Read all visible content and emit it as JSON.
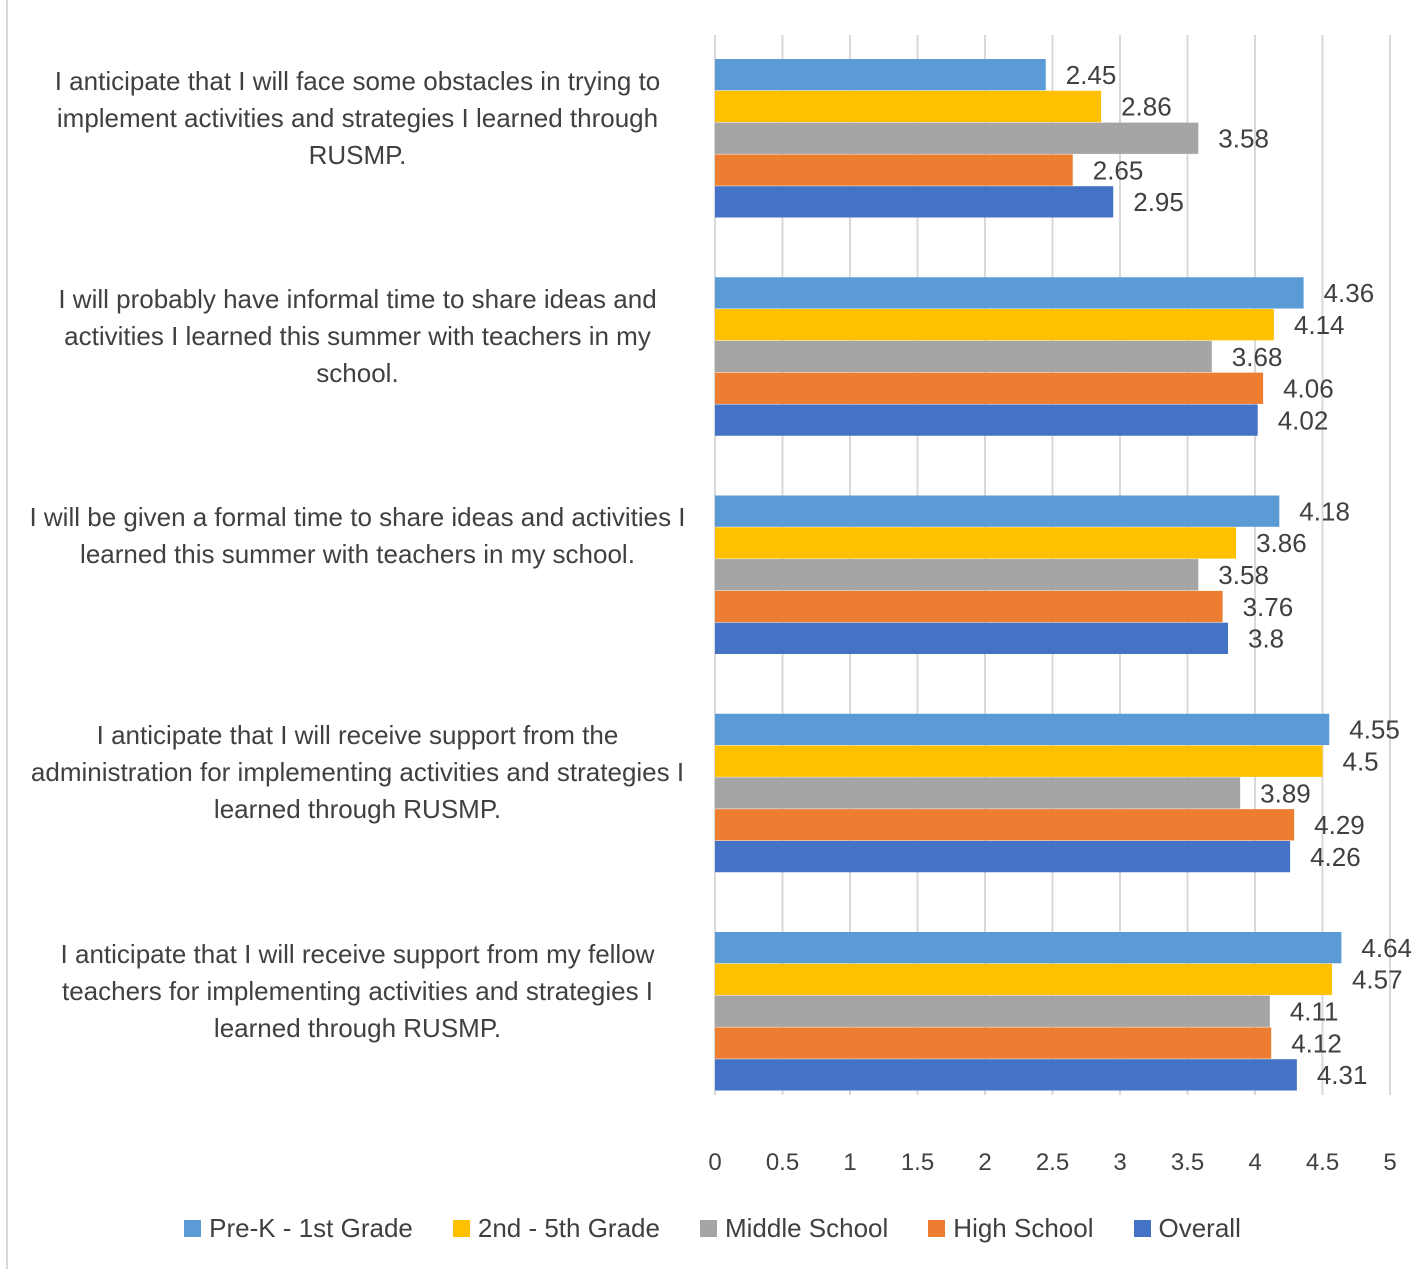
{
  "chart_data": {
    "type": "bar",
    "orientation": "horizontal",
    "categories": [
      "I anticipate that I will face some obstacles in trying to implement activities and strategies I learned through RUSMP.",
      "I will probably have informal time to share ideas and activities I learned this summer with teachers in my school.",
      "I will be given a formal time to share ideas and activities I learned this summer with teachers in my school.",
      "I anticipate that I will receive support from the administration for implementing activities and strategies I learned through RUSMP.",
      "I anticipate that I will receive support from my fellow teachers for implementing activities and strategies I learned through RUSMP."
    ],
    "series": [
      {
        "name": "Pre-K - 1st Grade",
        "color": "#5B9BD5",
        "values": [
          2.45,
          4.36,
          4.18,
          4.55,
          4.64
        ]
      },
      {
        "name": "2nd - 5th Grade",
        "color": "#FFC000",
        "values": [
          2.86,
          4.14,
          3.86,
          4.5,
          4.57
        ]
      },
      {
        "name": "Middle School",
        "color": "#A5A5A5",
        "values": [
          3.58,
          3.68,
          3.58,
          3.89,
          4.11
        ]
      },
      {
        "name": "High School",
        "color": "#ED7D31",
        "values": [
          2.65,
          4.06,
          3.76,
          4.29,
          4.12
        ]
      },
      {
        "name": "Overall",
        "color": "#4472C4",
        "values": [
          2.95,
          4.02,
          3.8,
          4.26,
          4.31
        ]
      }
    ],
    "xlim": [
      0,
      5
    ],
    "xticks": [
      "0",
      "0.5",
      "1",
      "1.5",
      "2",
      "2.5",
      "3",
      "3.5",
      "4",
      "4.5",
      "5"
    ],
    "grid": true,
    "legend_position": "bottom",
    "data_labels": true
  }
}
